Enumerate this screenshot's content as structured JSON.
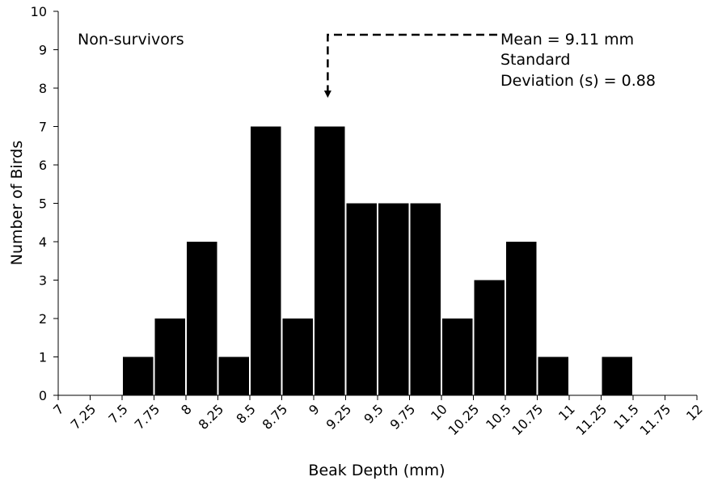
{
  "chart_data": {
    "type": "bar",
    "title": "",
    "xlabel": "Beak Depth (mm)",
    "ylabel": "Number of Birds",
    "categories": [
      "7",
      "7.25",
      "7.5",
      "7.75",
      "8",
      "8.25",
      "8.5",
      "8.75",
      "9",
      "9.25",
      "9.5",
      "9.75",
      "10",
      "10.25",
      "10.5",
      "10.75",
      "11",
      "11.25",
      "11.5",
      "11.75",
      "12"
    ],
    "x": [
      7.5,
      7.75,
      8,
      8.25,
      8.5,
      8.75,
      9,
      9.25,
      9.5,
      9.75,
      10,
      10.25,
      10.5,
      10.75,
      11.25
    ],
    "values": [
      1,
      2,
      4,
      1,
      7,
      2,
      7,
      5,
      5,
      5,
      2,
      3,
      4,
      1,
      1
    ],
    "bar_width": 0.25,
    "bar_align": "left-edge",
    "xlim": [
      7,
      12
    ],
    "ylim": [
      0,
      10
    ],
    "yticks": [
      "0",
      "1",
      "2",
      "3",
      "4",
      "5",
      "6",
      "7",
      "8",
      "9",
      "10"
    ],
    "bar_color": "#000000",
    "grid": false,
    "legend": "none",
    "annotations": {
      "group_label": "Non-survivors",
      "mean_text": "Mean = 9.11 mm",
      "sd_line1": "Standard",
      "sd_line2": "Deviation (s) = 0.88",
      "mean_value": 9.11,
      "arrow_style": "dashed"
    }
  }
}
